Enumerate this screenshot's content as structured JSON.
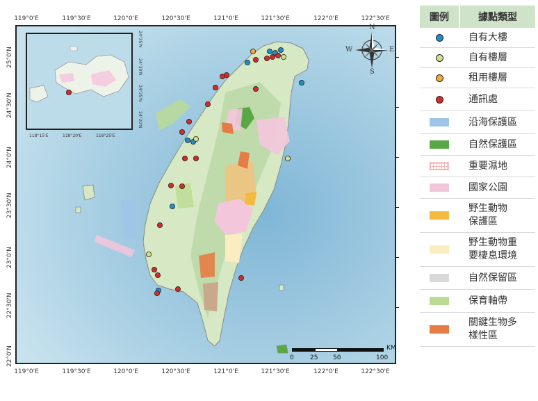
{
  "map": {
    "top_ticks": [
      "119°0'E",
      "119°30'E",
      "120°0'E",
      "120°30'E",
      "121°0'E",
      "121°30'E",
      "122°0'E",
      "122°30'E"
    ],
    "bottom_ticks": [
      "119°0'E",
      "119°30'E",
      "120°0'E",
      "120°30'E",
      "121°0'E",
      "121°30'E",
      "122°0'E",
      "122°30'E"
    ],
    "left_ticks": [
      "25°0'N",
      "24°30'N",
      "24°0'N",
      "23°30'N",
      "23°0'N",
      "22°30'N",
      "22°0'N"
    ],
    "inset": {
      "bottom_ticks": [
        "118°15'E",
        "118°20'E",
        "118°25'E"
      ],
      "right_ticks": [
        "24°35'N",
        "24°30'N",
        "24°25'N",
        "24°20'N"
      ]
    },
    "compass": {
      "n": "N",
      "s": "S",
      "e": "E",
      "w": "W"
    },
    "scale": {
      "unit": "KM",
      "labels": [
        "0",
        "25",
        "50",
        "100"
      ]
    }
  },
  "legend": {
    "header": {
      "col1": "圖例",
      "col2": "據點類型"
    },
    "items": [
      {
        "label": "自有大樓",
        "kind": "dot",
        "color": "#1f8fc8"
      },
      {
        "label": "自有樓層",
        "kind": "dot",
        "color": "#cfe08a"
      },
      {
        "label": "租用樓層",
        "kind": "dot",
        "color": "#f2a93b"
      },
      {
        "label": "通訊處",
        "kind": "dot",
        "color": "#d52b2b"
      },
      {
        "label": "沿海保護區",
        "kind": "rect",
        "color": "#9ec5e8"
      },
      {
        "label": "自然保護區",
        "kind": "rect",
        "color": "#5aa845"
      },
      {
        "label": "重要濕地",
        "kind": "grid",
        "color": "#f3b6b6"
      },
      {
        "label": "國家公園",
        "kind": "rect",
        "color": "#f4c6dc"
      },
      {
        "label": "野生動物\n保護區",
        "kind": "rect",
        "color": "#f3b941"
      },
      {
        "label": "野生動物重\n要棲息環境",
        "kind": "rect",
        "color": "#fbecc2"
      },
      {
        "label": "自然保留區",
        "kind": "rect",
        "color": "#d9d9d9"
      },
      {
        "label": "保育軸帶",
        "kind": "rect",
        "color": "#bcdb92"
      },
      {
        "label": "關鍵生物多\n樣性區",
        "kind": "rect",
        "color": "#e67c45"
      }
    ]
  }
}
